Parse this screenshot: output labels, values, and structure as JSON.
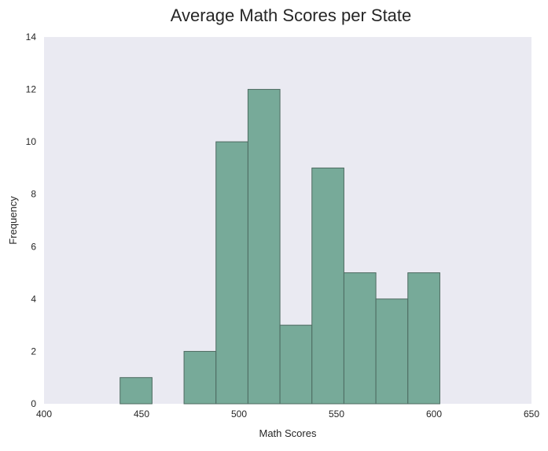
{
  "chart_data": {
    "type": "bar",
    "title": "Average Math Scores per State",
    "xlabel": "Math Scores",
    "ylabel": "Frequency",
    "xlim": [
      400,
      650
    ],
    "ylim": [
      0,
      14
    ],
    "xticks": [
      400,
      450,
      500,
      550,
      600,
      650
    ],
    "yticks": [
      0,
      2,
      4,
      6,
      8,
      10,
      12,
      14
    ],
    "grid": false,
    "bins": [
      {
        "start": 439.0,
        "end": 455.4,
        "count": 1
      },
      {
        "start": 455.4,
        "end": 471.8,
        "count": 0
      },
      {
        "start": 471.8,
        "end": 488.2,
        "count": 2
      },
      {
        "start": 488.2,
        "end": 504.6,
        "count": 10
      },
      {
        "start": 504.6,
        "end": 521.0,
        "count": 12
      },
      {
        "start": 521.0,
        "end": 537.4,
        "count": 3
      },
      {
        "start": 537.4,
        "end": 553.8,
        "count": 9
      },
      {
        "start": 553.8,
        "end": 570.2,
        "count": 5
      },
      {
        "start": 570.2,
        "end": 586.6,
        "count": 4
      },
      {
        "start": 586.6,
        "end": 603.0,
        "count": 5
      }
    ],
    "colors": {
      "bar_fill": "#77aa99",
      "bar_edge": "#4d6a60",
      "plot_background": "#eaeaf2"
    }
  }
}
